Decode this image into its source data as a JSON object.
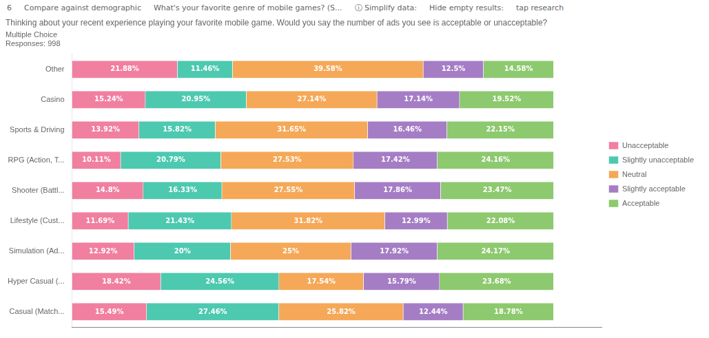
{
  "chart_data": {
    "type": "bar",
    "orientation": "horizontal",
    "stacked": true,
    "title": "Thinking about your recent experience playing your favorite mobile game. Would you say the number of ads you see is acceptable or unacceptable?",
    "subtitle": [
      "Multiple Choice",
      "Responses: 998"
    ],
    "annotations": [
      "6",
      "Compare against demographic",
      "What's your favorite genre of mobile games? (S...",
      "ⓘ Simplify data:",
      "Hide empty results:",
      "tap research"
    ],
    "categories": [
      "Other",
      "Casino",
      "Sports & Driving",
      "RPG (Action, T...",
      "Shooter (Battl...",
      "Lifestyle (Cust...",
      "Simulation (Ad...",
      "Hyper Casual (...",
      "Casual (Match..."
    ],
    "series": [
      {
        "name": "Unacceptable",
        "color": "#f07fa0",
        "values": [
          21.88,
          15.24,
          13.92,
          10.11,
          14.8,
          11.69,
          12.92,
          18.42,
          15.49
        ],
        "value_labels": [
          "21.88%",
          "15.24%",
          "13.92%",
          "10.11%",
          "14.8%",
          "11.69%",
          "12.92%",
          "18.42%",
          "15.49%"
        ]
      },
      {
        "name": "Slightly unacceptable",
        "color": "#4dc9b0",
        "values": [
          11.46,
          20.95,
          15.82,
          20.79,
          16.33,
          21.43,
          20.0,
          24.56,
          27.46
        ],
        "value_labels": [
          "11.46%",
          "20.95%",
          "15.82%",
          "20.79%",
          "16.33%",
          "21.43%",
          "20%",
          "24.56%",
          "27.46%"
        ]
      },
      {
        "name": "Neutral",
        "color": "#f5a857",
        "values": [
          39.58,
          27.14,
          31.65,
          27.53,
          27.55,
          31.82,
          25.0,
          17.54,
          25.82
        ],
        "value_labels": [
          "39.58%",
          "27.14%",
          "31.65%",
          "27.53%",
          "27.55%",
          "31.82%",
          "25%",
          "17.54%",
          "25.82%"
        ]
      },
      {
        "name": "Slightly acceptable",
        "color": "#a57dc5",
        "values": [
          12.5,
          17.14,
          16.46,
          17.42,
          17.86,
          12.99,
          17.92,
          15.79,
          12.44
        ],
        "value_labels": [
          "12.5%",
          "17.14%",
          "16.46%",
          "17.42%",
          "17.86%",
          "12.99%",
          "17.92%",
          "15.79%",
          "12.44%"
        ]
      },
      {
        "name": "Acceptable",
        "color": "#8dc96e",
        "values": [
          14.58,
          19.52,
          22.15,
          24.16,
          23.47,
          22.08,
          24.17,
          23.68,
          18.78
        ],
        "value_labels": [
          "14.58%",
          "19.52%",
          "22.15%",
          "24.16%",
          "23.47%",
          "22.08%",
          "24.17%",
          "23.68%",
          "18.78%"
        ]
      }
    ],
    "xlim": [
      0,
      110
    ],
    "data_labels": true,
    "tick_labels": "y",
    "grid": false,
    "legend": "right"
  }
}
